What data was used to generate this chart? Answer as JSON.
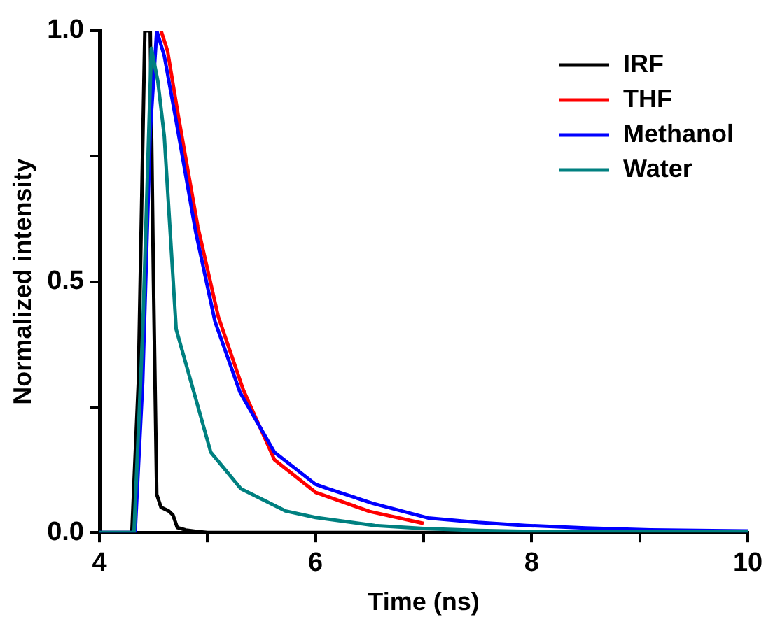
{
  "chart_data": {
    "type": "line",
    "xlabel": "Time (ns)",
    "ylabel": "Normalized intensity",
    "xlim": [
      4,
      10
    ],
    "xticks": [
      4,
      {
        "value": 5,
        "label": null
      },
      6,
      {
        "value": 7,
        "label": null
      },
      8,
      {
        "value": 9,
        "label": null
      },
      10
    ],
    "ylim": [
      0,
      1
    ],
    "yticks": [
      {
        "value": 0,
        "label": "0.0"
      },
      {
        "value": 0.25,
        "label": null
      },
      0.5,
      {
        "value": 0.75,
        "label": null
      },
      {
        "value": 1,
        "label": "1.0"
      }
    ],
    "grid": false,
    "legend": "top right",
    "marker": "none",
    "line_style": "solid",
    "series": [
      {
        "name": "IRF",
        "color": "#000000",
        "x": [
          4.0,
          4.3,
          4.36,
          4.42,
          4.47,
          4.5,
          4.53,
          4.57,
          4.64,
          4.68,
          4.72,
          4.8,
          4.9,
          5.0,
          6.0,
          8.0,
          10.0
        ],
        "values": [
          0,
          0,
          0.3,
          1.0,
          1.0,
          0.5,
          0.076,
          0.05,
          0.043,
          0.035,
          0.01,
          0.005,
          0.002,
          0,
          0,
          0,
          0
        ]
      },
      {
        "name": "THF",
        "color": "#ff0000",
        "x": [
          4.57,
          4.63,
          4.73,
          4.91,
          5.1,
          5.33,
          5.62,
          6.0,
          6.5,
          7.0
        ],
        "values": [
          1.0,
          0.96,
          0.83,
          0.61,
          0.43,
          0.285,
          0.145,
          0.08,
          0.042,
          0.018
        ]
      },
      {
        "name": "Methanol",
        "color": "#0000ff",
        "x": [
          4.0,
          4.33,
          4.4,
          4.47,
          4.53,
          4.6,
          4.71,
          4.89,
          5.07,
          5.3,
          5.62,
          6.0,
          6.12,
          6.53,
          7.04,
          7.5,
          7.95,
          8.5,
          9.1,
          10.0
        ],
        "values": [
          0,
          0,
          0.3,
          0.8,
          1.0,
          0.95,
          0.82,
          0.6,
          0.42,
          0.28,
          0.16,
          0.096,
          0.087,
          0.058,
          0.029,
          0.02,
          0.014,
          0.009,
          0.005,
          0.003
        ]
      },
      {
        "name": "Water",
        "color": "#008080",
        "x": [
          4.0,
          4.32,
          4.4,
          4.48,
          4.54,
          4.6,
          4.71,
          4.9,
          5.03,
          5.31,
          5.72,
          6.0,
          6.55,
          7.0,
          7.5,
          8.0,
          10.0
        ],
        "values": [
          0,
          0,
          0.4,
          0.965,
          0.9,
          0.79,
          0.405,
          0.26,
          0.16,
          0.087,
          0.043,
          0.03,
          0.014,
          0.008,
          0.004,
          0.002,
          0.001
        ]
      }
    ]
  }
}
